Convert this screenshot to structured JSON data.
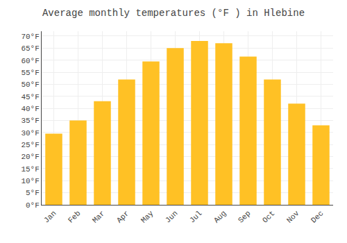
{
  "chart_data": {
    "type": "bar",
    "title": "Average monthly temperatures (°F ) in Hlebine",
    "categories": [
      "Jan",
      "Feb",
      "Mar",
      "Apr",
      "May",
      "Jun",
      "Jul",
      "Aug",
      "Sep",
      "Oct",
      "Nov",
      "Dec"
    ],
    "values": [
      29.5,
      35.0,
      43.0,
      52.0,
      59.5,
      65.0,
      68.0,
      67.0,
      61.5,
      52.0,
      42.0,
      33.0
    ],
    "color": "#FFC125",
    "ylim": [
      0,
      72
    ],
    "yticks": [
      {
        "value": 0,
        "label": "0°F"
      },
      {
        "value": 5,
        "label": "5°F"
      },
      {
        "value": 10,
        "label": "10°F"
      },
      {
        "value": 15,
        "label": "15°F"
      },
      {
        "value": 20,
        "label": "20°F"
      },
      {
        "value": 25,
        "label": "25°F"
      },
      {
        "value": 30,
        "label": "30°F"
      },
      {
        "value": 35,
        "label": "35°F"
      },
      {
        "value": 40,
        "label": "40°F"
      },
      {
        "value": 45,
        "label": "45°F"
      },
      {
        "value": 50,
        "label": "50°F"
      },
      {
        "value": 55,
        "label": "55°F"
      },
      {
        "value": 60,
        "label": "60°F"
      },
      {
        "value": 65,
        "label": "65°F"
      },
      {
        "value": 70,
        "label": "70°F"
      }
    ],
    "grid": true
  }
}
